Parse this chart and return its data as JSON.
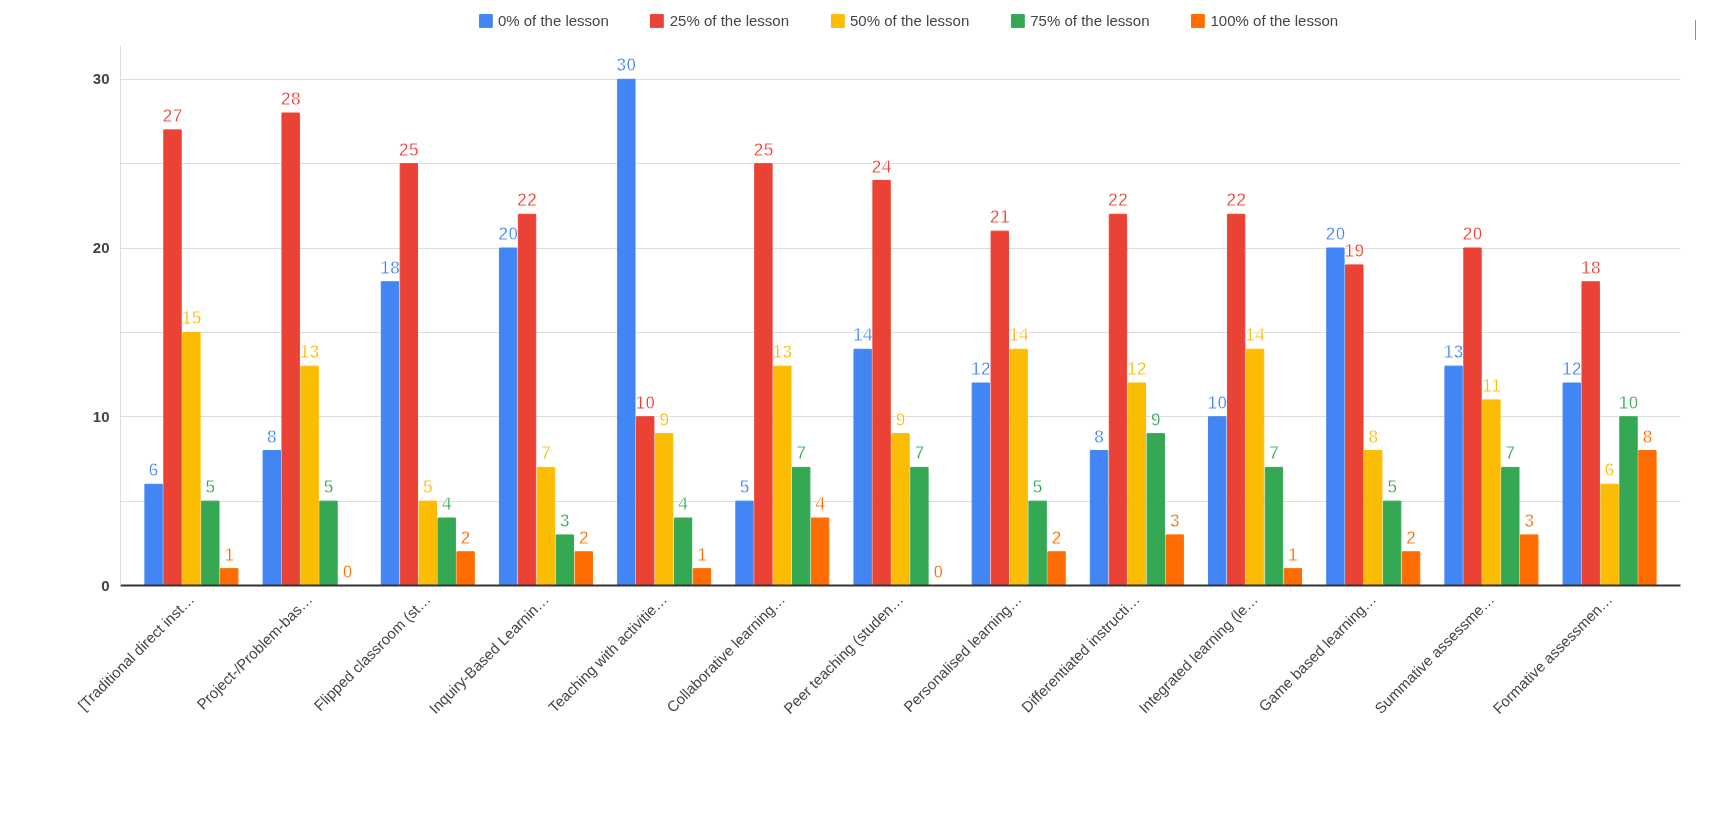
{
  "chart_data": {
    "type": "bar",
    "categories": [
      "[Traditional direct inst…",
      "Project-/Problem-bas…",
      "Flipped classroom (st…",
      "Inquiry-Based Learnin…",
      "Teaching with activitie…",
      "Collaborative learning…",
      "Peer teaching (studen…",
      "Personalised learning…",
      "Differentiated instructi…",
      "Integrated learning (le…",
      "Game based learning…",
      "Summative assessme…",
      "Formative assessmen…"
    ],
    "series": [
      {
        "name": "0% of the lesson",
        "color": "#4285f4",
        "values": [
          6,
          8,
          18,
          20,
          30,
          5,
          14,
          12,
          8,
          10,
          20,
          13,
          12
        ]
      },
      {
        "name": "25% of the lesson",
        "color": "#ea4335",
        "values": [
          27,
          28,
          25,
          22,
          10,
          25,
          24,
          21,
          22,
          22,
          19,
          20,
          18
        ]
      },
      {
        "name": "50% of the lesson",
        "color": "#fbbc04",
        "values": [
          15,
          13,
          5,
          7,
          9,
          13,
          9,
          14,
          12,
          14,
          8,
          11,
          6
        ]
      },
      {
        "name": "75% of the lesson",
        "color": "#34a853",
        "values": [
          5,
          5,
          4,
          3,
          4,
          7,
          7,
          5,
          9,
          7,
          5,
          7,
          10
        ]
      },
      {
        "name": "100% of the lesson",
        "color": "#ff6d01",
        "values": [
          1,
          0,
          2,
          2,
          1,
          4,
          0,
          2,
          3,
          1,
          2,
          3,
          8
        ]
      }
    ],
    "ylim": [
      0,
      32
    ],
    "yticks": [
      0,
      {
        "value": 5,
        "label": null
      },
      10,
      {
        "value": 15,
        "label": null
      },
      20,
      {
        "value": 25,
        "label": null
      },
      30
    ],
    "grid": "y",
    "legend": "top",
    "data_labels": true
  }
}
